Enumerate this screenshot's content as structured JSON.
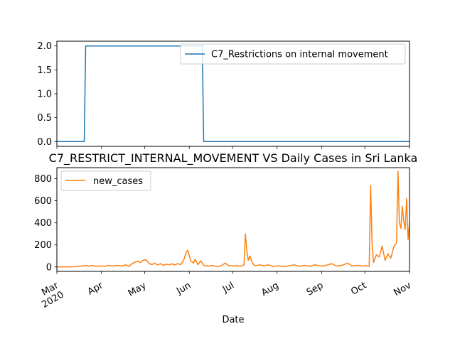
{
  "chart_data": [
    {
      "type": "line",
      "title": "",
      "xlabel": "",
      "ylabel": "",
      "xlim": [
        "2020-03-01",
        "2020-11-01"
      ],
      "ylim": [
        -0.1,
        2.1
      ],
      "yticks": [
        0.0,
        0.5,
        1.0,
        1.5,
        2.0
      ],
      "ytick_labels": [
        "0.0",
        "0.5",
        "1.0",
        "1.5",
        "2.0"
      ],
      "legend": "top-right",
      "grid": false,
      "series": [
        {
          "name": "C7_Restrictions on internal movement",
          "color": "#1f77b4",
          "points": [
            [
              "2020-03-01",
              0
            ],
            [
              "2020-03-20",
              0
            ],
            [
              "2020-03-21",
              2
            ],
            [
              "2020-06-10",
              2
            ],
            [
              "2020-06-11",
              0
            ],
            [
              "2020-11-01",
              0
            ]
          ]
        }
      ]
    },
    {
      "type": "line",
      "title": "C7_RESTRICT_INTERNAL_MOVEMENT VS Daily Cases in Sri Lanka",
      "xlabel": "Date",
      "ylabel": "",
      "xlim": [
        "2020-03-01",
        "2020-11-01"
      ],
      "ylim": [
        -40,
        900
      ],
      "yticks": [
        0,
        200,
        400,
        600,
        800
      ],
      "ytick_labels": [
        "0",
        "200",
        "400",
        "600",
        "800"
      ],
      "xticks": [
        "2020-03-01",
        "2020-04-01",
        "2020-05-01",
        "2020-06-01",
        "2020-07-01",
        "2020-08-01",
        "2020-09-01",
        "2020-10-01",
        "2020-11-01"
      ],
      "xtick_labels": [
        "Mar\n2020",
        "Apr",
        "May",
        "Jun",
        "Jul",
        "Aug",
        "Sep",
        "Oct",
        "Nov"
      ],
      "legend": "top-left",
      "grid": false,
      "series": [
        {
          "name": "new_cases",
          "color": "#ff7f0e",
          "points": [
            [
              "2020-03-01",
              0
            ],
            [
              "2020-03-10",
              1
            ],
            [
              "2020-03-15",
              3
            ],
            [
              "2020-03-19",
              10
            ],
            [
              "2020-03-21",
              14
            ],
            [
              "2020-03-23",
              8
            ],
            [
              "2020-03-26",
              12
            ],
            [
              "2020-03-28",
              5
            ],
            [
              "2020-03-31",
              10
            ],
            [
              "2020-04-03",
              6
            ],
            [
              "2020-04-06",
              14
            ],
            [
              "2020-04-09",
              8
            ],
            [
              "2020-04-12",
              15
            ],
            [
              "2020-04-15",
              8
            ],
            [
              "2020-04-18",
              20
            ],
            [
              "2020-04-20",
              5
            ],
            [
              "2020-04-22",
              28
            ],
            [
              "2020-04-24",
              42
            ],
            [
              "2020-04-26",
              52
            ],
            [
              "2020-04-28",
              40
            ],
            [
              "2020-04-30",
              62
            ],
            [
              "2020-05-02",
              65
            ],
            [
              "2020-05-04",
              30
            ],
            [
              "2020-05-06",
              22
            ],
            [
              "2020-05-08",
              35
            ],
            [
              "2020-05-10",
              18
            ],
            [
              "2020-05-12",
              30
            ],
            [
              "2020-05-14",
              15
            ],
            [
              "2020-05-16",
              25
            ],
            [
              "2020-05-18",
              20
            ],
            [
              "2020-05-20",
              28
            ],
            [
              "2020-05-22",
              18
            ],
            [
              "2020-05-24",
              30
            ],
            [
              "2020-05-26",
              22
            ],
            [
              "2020-05-28",
              60
            ],
            [
              "2020-05-30",
              140
            ],
            [
              "2020-05-31",
              150
            ],
            [
              "2020-06-02",
              55
            ],
            [
              "2020-06-04",
              35
            ],
            [
              "2020-06-05",
              70
            ],
            [
              "2020-06-07",
              20
            ],
            [
              "2020-06-09",
              55
            ],
            [
              "2020-06-11",
              15
            ],
            [
              "2020-06-14",
              8
            ],
            [
              "2020-06-17",
              12
            ],
            [
              "2020-06-20",
              4
            ],
            [
              "2020-06-23",
              10
            ],
            [
              "2020-06-26",
              35
            ],
            [
              "2020-06-28",
              15
            ],
            [
              "2020-07-01",
              8
            ],
            [
              "2020-07-04",
              12
            ],
            [
              "2020-07-07",
              6
            ],
            [
              "2020-07-09",
              20
            ],
            [
              "2020-07-10",
              300
            ],
            [
              "2020-07-11",
              140
            ],
            [
              "2020-07-12",
              60
            ],
            [
              "2020-07-13",
              100
            ],
            [
              "2020-07-15",
              30
            ],
            [
              "2020-07-17",
              10
            ],
            [
              "2020-07-20",
              20
            ],
            [
              "2020-07-23",
              8
            ],
            [
              "2020-07-26",
              20
            ],
            [
              "2020-07-29",
              5
            ],
            [
              "2020-08-02",
              10
            ],
            [
              "2020-08-06",
              3
            ],
            [
              "2020-08-10",
              12
            ],
            [
              "2020-08-13",
              20
            ],
            [
              "2020-08-16",
              6
            ],
            [
              "2020-08-20",
              15
            ],
            [
              "2020-08-24",
              5
            ],
            [
              "2020-08-27",
              20
            ],
            [
              "2020-09-01",
              8
            ],
            [
              "2020-09-04",
              15
            ],
            [
              "2020-09-08",
              30
            ],
            [
              "2020-09-11",
              8
            ],
            [
              "2020-09-15",
              15
            ],
            [
              "2020-09-19",
              35
            ],
            [
              "2020-09-22",
              10
            ],
            [
              "2020-09-26",
              15
            ],
            [
              "2020-09-30",
              8
            ],
            [
              "2020-10-02",
              12
            ],
            [
              "2020-10-04",
              5
            ],
            [
              "2020-10-05",
              740
            ],
            [
              "2020-10-06",
              200
            ],
            [
              "2020-10-07",
              40
            ],
            [
              "2020-10-09",
              110
            ],
            [
              "2020-10-11",
              90
            ],
            [
              "2020-10-13",
              190
            ],
            [
              "2020-10-15",
              60
            ],
            [
              "2020-10-17",
              120
            ],
            [
              "2020-10-19",
              80
            ],
            [
              "2020-10-21",
              180
            ],
            [
              "2020-10-23",
              220
            ],
            [
              "2020-10-24",
              870
            ],
            [
              "2020-10-25",
              400
            ],
            [
              "2020-10-26",
              350
            ],
            [
              "2020-10-27",
              550
            ],
            [
              "2020-10-28",
              420
            ],
            [
              "2020-10-29",
              340
            ],
            [
              "2020-10-30",
              620
            ],
            [
              "2020-10-31",
              250
            ],
            [
              "2020-11-01",
              400
            ]
          ]
        }
      ]
    }
  ]
}
